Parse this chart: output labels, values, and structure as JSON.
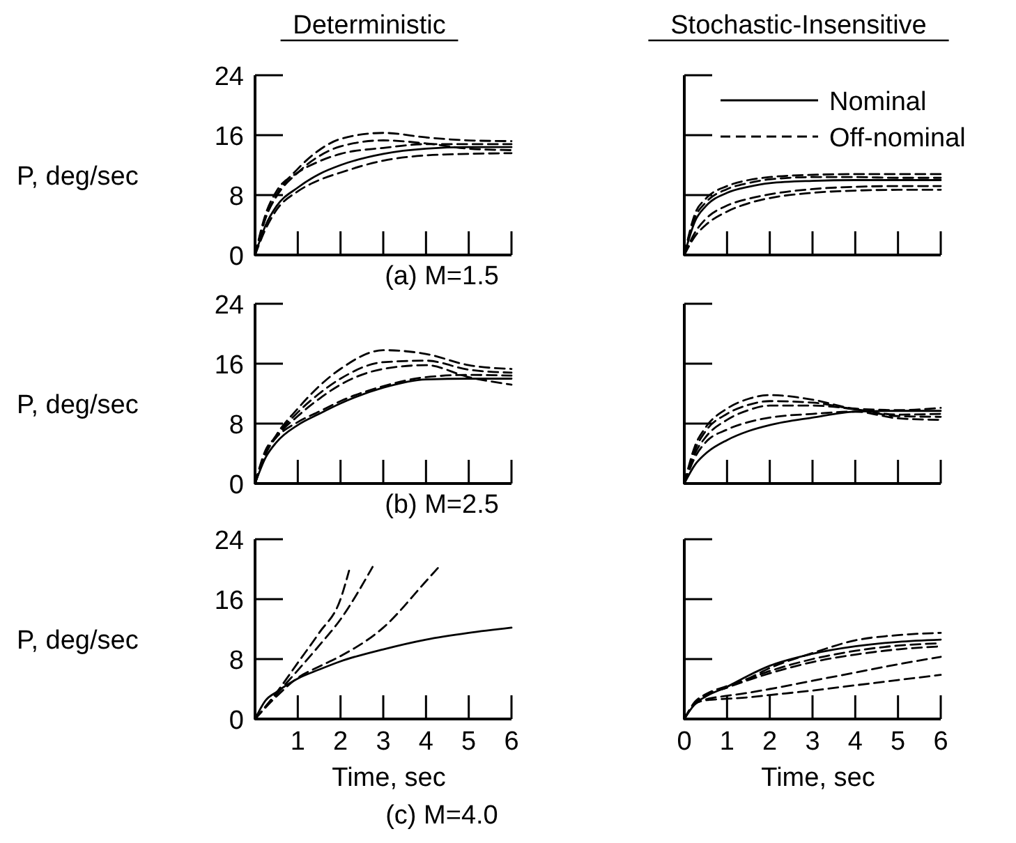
{
  "chart_data": [
    {
      "type": "line",
      "title": "Deterministic",
      "ylabel": "P, deg/sec",
      "xlim": [
        0,
        6
      ],
      "ylim": [
        0,
        24
      ],
      "xticks": [
        0,
        1,
        2,
        3,
        4,
        5,
        6
      ],
      "yticks": [
        0,
        8,
        16,
        24
      ],
      "tick_labels": "y",
      "annotations": [
        "(a) M=1.5"
      ],
      "x": [
        0,
        0.25,
        0.5,
        1,
        1.5,
        2,
        3,
        4,
        5,
        6
      ],
      "series": [
        {
          "color": "#000000",
          "line_style": "solid",
          "values": [
            0,
            4,
            6.5,
            9,
            10.8,
            12,
            13.5,
            14.2,
            14.4,
            14.4
          ]
        },
        {
          "color": "#000000",
          "line_style": "dashed",
          "values": [
            0,
            5,
            8,
            11.5,
            14,
            15.5,
            16.3,
            15.7,
            15.3,
            15.2
          ]
        },
        {
          "color": "#000000",
          "line_style": "dashed",
          "values": [
            0,
            5,
            7.8,
            11,
            13.2,
            14.5,
            15.3,
            14.9,
            14.2,
            14
          ]
        },
        {
          "color": "#000000",
          "line_style": "dashed",
          "values": [
            0,
            5.5,
            8.5,
            11,
            12.5,
            13.5,
            14.3,
            14.8,
            14.8,
            14.8
          ]
        },
        {
          "color": "#000000",
          "line_style": "dashed",
          "values": [
            0,
            3.5,
            6,
            8.5,
            10,
            11,
            12.6,
            13.3,
            13.5,
            13.6
          ]
        }
      ]
    },
    {
      "type": "line",
      "title": "Stochastic-Insensitive",
      "legend": "top right",
      "xlim": [
        0,
        6
      ],
      "ylim": [
        0,
        24
      ],
      "xticks": [
        0,
        1,
        2,
        3,
        4,
        5,
        6
      ],
      "yticks": [
        0,
        8,
        16,
        24
      ],
      "tick_labels": false,
      "x": [
        0,
        0.25,
        0.5,
        1,
        1.5,
        2,
        3,
        4,
        5,
        6
      ],
      "series": [
        {
          "name": "Nominal",
          "color": "#000000",
          "line_style": "solid",
          "values": [
            0,
            4.5,
            6.5,
            8.3,
            9.1,
            9.6,
            9.9,
            10,
            10,
            10
          ]
        },
        {
          "name": "Off-nominal",
          "color": "#000000",
          "line_style": "dashed",
          "values": [
            0,
            5.5,
            7.5,
            9.2,
            10,
            10.4,
            10.7,
            10.8,
            10.8,
            10.8
          ]
        },
        {
          "color": "#000000",
          "line_style": "dashed",
          "values": [
            0,
            5,
            7,
            8.8,
            9.6,
            10.1,
            10.4,
            10.4,
            10.3,
            10.3
          ]
        },
        {
          "color": "#000000",
          "line_style": "dashed",
          "values": [
            0,
            3,
            4.8,
            6.6,
            7.5,
            8.1,
            8.8,
            9.1,
            9.2,
            9.2
          ]
        },
        {
          "color": "#000000",
          "line_style": "dashed",
          "values": [
            0,
            2.5,
            4,
            5.8,
            6.9,
            7.6,
            8.3,
            8.6,
            8.7,
            8.7
          ]
        }
      ]
    },
    {
      "type": "line",
      "ylabel": "P, deg/sec",
      "xlim": [
        0,
        6
      ],
      "ylim": [
        0,
        24
      ],
      "xticks": [
        0,
        1,
        2,
        3,
        4,
        5,
        6
      ],
      "yticks": [
        0,
        8,
        16,
        24
      ],
      "tick_labels": "y",
      "annotations": [
        "(b) M=2.5"
      ],
      "x": [
        0,
        0.25,
        0.5,
        1,
        1.5,
        2,
        3,
        4,
        5,
        6
      ],
      "series": [
        {
          "color": "#000000",
          "line_style": "solid",
          "values": [
            0,
            3.5,
            5.5,
            7.8,
            9.3,
            10.7,
            12.8,
            13.9,
            14,
            14
          ]
        },
        {
          "color": "#000000",
          "line_style": "dashed",
          "values": [
            0,
            4,
            6.5,
            10,
            13,
            15.3,
            17.8,
            17.3,
            15.8,
            15.3
          ]
        },
        {
          "color": "#000000",
          "line_style": "dashed",
          "values": [
            0,
            4,
            6.3,
            9.5,
            12,
            14,
            16.2,
            16.4,
            15.2,
            14.8
          ]
        },
        {
          "color": "#000000",
          "line_style": "dashed",
          "values": [
            0,
            4,
            6.2,
            9,
            11.3,
            13.2,
            15.3,
            15.8,
            14.2,
            13.2
          ]
        },
        {
          "color": "#000000",
          "line_style": "dashed",
          "values": [
            0,
            4.5,
            6.2,
            8.2,
            9.6,
            11,
            13,
            14.2,
            14.5,
            14.4
          ]
        }
      ]
    },
    {
      "type": "line",
      "xlim": [
        0,
        6
      ],
      "ylim": [
        0,
        24
      ],
      "xticks": [
        0,
        1,
        2,
        3,
        4,
        5,
        6
      ],
      "yticks": [
        0,
        8,
        16,
        24
      ],
      "tick_labels": false,
      "x": [
        0,
        0.25,
        0.5,
        1,
        1.5,
        2,
        3,
        4,
        5,
        6
      ],
      "series": [
        {
          "color": "#000000",
          "line_style": "solid",
          "values": [
            0,
            2.5,
            4,
            5.8,
            7,
            7.8,
            8.8,
            9.6,
            9.7,
            9.7
          ]
        },
        {
          "color": "#000000",
          "line_style": "dashed",
          "values": [
            0,
            5,
            7.5,
            10,
            11.3,
            11.8,
            11.2,
            10,
            9.8,
            10.1
          ]
        },
        {
          "color": "#000000",
          "line_style": "dashed",
          "values": [
            0,
            4.5,
            7,
            9.3,
            10.5,
            11,
            10.8,
            9.9,
            9.2,
            9.3
          ]
        },
        {
          "color": "#000000",
          "line_style": "dashed",
          "values": [
            0,
            4,
            6.2,
            8.5,
            9.8,
            10.4,
            10.4,
            9.9,
            9,
            8.9
          ]
        },
        {
          "color": "#000000",
          "line_style": "dashed",
          "values": [
            0,
            3.5,
            5.5,
            7.2,
            8.2,
            8.8,
            9.3,
            9.6,
            8.7,
            8.5
          ]
        }
      ]
    },
    {
      "type": "line",
      "ylabel": "P, deg/sec",
      "xlabel": "Time, sec",
      "xlim": [
        0,
        6
      ],
      "ylim": [
        0,
        24
      ],
      "xticks": [
        {
          "value": 0,
          "label": null
        },
        1,
        2,
        3,
        4,
        5,
        6
      ],
      "yticks": [
        0,
        8,
        16,
        24
      ],
      "annotations": [
        "(c) M=4.0"
      ],
      "x": [
        0,
        0.25,
        0.5,
        1,
        1.5,
        2,
        3,
        4,
        5,
        6
      ],
      "series": [
        {
          "color": "#000000",
          "line_style": "solid",
          "values": [
            0,
            2.5,
            3.6,
            5.4,
            6.6,
            7.7,
            9.3,
            10.6,
            11.5,
            12.2
          ]
        },
        {
          "color": "#000000",
          "line_style": "dashed",
          "x": [
            0,
            0.5,
            1,
            1.5,
            2,
            2.2
          ],
          "values": [
            0,
            3.5,
            7.5,
            11.5,
            16,
            19.8
          ]
        },
        {
          "color": "#000000",
          "line_style": "dashed",
          "x": [
            0,
            0.5,
            1,
            1.5,
            2,
            2.75
          ],
          "values": [
            0,
            3.3,
            6.5,
            9.8,
            13.3,
            20.3
          ]
        },
        {
          "color": "#000000",
          "line_style": "dashed",
          "x": [
            0,
            0.5,
            1,
            1.5,
            2,
            3,
            4,
            4.3
          ],
          "values": [
            0,
            3,
            5.5,
            7,
            8.4,
            12.2,
            18.4,
            20.3
          ]
        }
      ]
    },
    {
      "type": "line",
      "xlabel": "Time, sec",
      "xlim": [
        0,
        6
      ],
      "ylim": [
        0,
        24
      ],
      "xticks": [
        0,
        1,
        2,
        3,
        4,
        5,
        6
      ],
      "yticks": [
        0,
        8,
        16,
        24
      ],
      "tick_labels": "x",
      "x": [
        0,
        0.25,
        0.5,
        1,
        1.5,
        2,
        3,
        4,
        5,
        6
      ],
      "series": [
        {
          "color": "#000000",
          "line_style": "solid",
          "values": [
            0,
            2,
            3,
            4.3,
            5.8,
            7.1,
            8.7,
            9.7,
            10.3,
            10.6
          ]
        },
        {
          "color": "#000000",
          "line_style": "dashed",
          "values": [
            0,
            2.2,
            3.2,
            4.2,
            5.4,
            6.8,
            8.8,
            10.5,
            11.2,
            11.5
          ]
        },
        {
          "color": "#000000",
          "line_style": "dashed",
          "values": [
            0,
            2.3,
            3.3,
            4.4,
            5.4,
            6.4,
            8,
            9.1,
            9.8,
            10.1
          ]
        },
        {
          "color": "#000000",
          "line_style": "dashed",
          "values": [
            0,
            2.2,
            3.2,
            4.2,
            5.2,
            6.1,
            7.6,
            8.6,
            9.3,
            9.7
          ]
        },
        {
          "color": "#000000",
          "line_style": "dashed",
          "values": [
            0,
            2,
            2.6,
            3.1,
            3.5,
            4,
            5.1,
            6.2,
            7.3,
            8.3
          ]
        },
        {
          "color": "#000000",
          "line_style": "dashed",
          "values": [
            0,
            2,
            2.5,
            2.7,
            2.9,
            3.2,
            3.8,
            4.5,
            5.2,
            5.9
          ]
        }
      ]
    }
  ]
}
